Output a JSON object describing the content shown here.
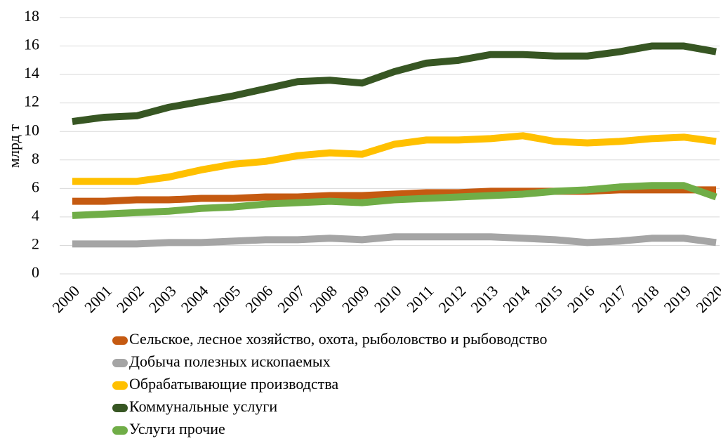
{
  "chart_data": {
    "type": "line",
    "y_label": "млрд т",
    "categories": [
      "2000",
      "2001",
      "2002",
      "2003",
      "2004",
      "2005",
      "2006",
      "2007",
      "2008",
      "2009",
      "2010",
      "2011",
      "2012",
      "2013",
      "2014",
      "2015",
      "2016",
      "2017",
      "2018",
      "2019",
      "2020"
    ],
    "series": [
      {
        "name": "Сельское, лесное хозяйство, охота, рыболовство и рыбоводство",
        "color": "#c55a11",
        "values": [
          5.1,
          5.1,
          5.2,
          5.2,
          5.3,
          5.3,
          5.4,
          5.4,
          5.5,
          5.5,
          5.6,
          5.7,
          5.7,
          5.8,
          5.8,
          5.8,
          5.8,
          5.9,
          5.9,
          5.9,
          5.9
        ]
      },
      {
        "name": "Добыча полезных ископаемых",
        "color": "#a5a5a5",
        "values": [
          2.1,
          2.1,
          2.1,
          2.2,
          2.2,
          2.3,
          2.4,
          2.4,
          2.5,
          2.4,
          2.6,
          2.6,
          2.6,
          2.6,
          2.5,
          2.4,
          2.2,
          2.3,
          2.5,
          2.5,
          2.2
        ]
      },
      {
        "name": "Обрабатывающие производства",
        "color": "#ffc000",
        "values": [
          6.5,
          6.5,
          6.5,
          6.8,
          7.3,
          7.7,
          7.9,
          8.3,
          8.5,
          8.4,
          9.1,
          9.4,
          9.4,
          9.5,
          9.7,
          9.3,
          9.2,
          9.3,
          9.5,
          9.6,
          9.3
        ]
      },
      {
        "name": "Коммунальные услуги",
        "color": "#375623",
        "values": [
          10.7,
          11.0,
          11.1,
          11.7,
          12.1,
          12.5,
          13.0,
          13.5,
          13.6,
          13.4,
          14.2,
          14.8,
          15.0,
          15.4,
          15.4,
          15.3,
          15.3,
          15.6,
          16.0,
          16.0,
          15.6
        ]
      },
      {
        "name": "Услуги прочие",
        "color": "#70ad47",
        "values": [
          4.1,
          4.2,
          4.3,
          4.4,
          4.6,
          4.7,
          4.9,
          5.0,
          5.1,
          5.0,
          5.2,
          5.3,
          5.4,
          5.5,
          5.6,
          5.8,
          5.9,
          6.1,
          6.2,
          6.2,
          5.4
        ]
      }
    ],
    "ylim": [
      0,
      18
    ],
    "yticks": [
      0,
      2,
      4,
      6,
      8,
      10,
      12,
      14,
      16,
      18
    ],
    "grid": true,
    "legend": "bottom"
  }
}
